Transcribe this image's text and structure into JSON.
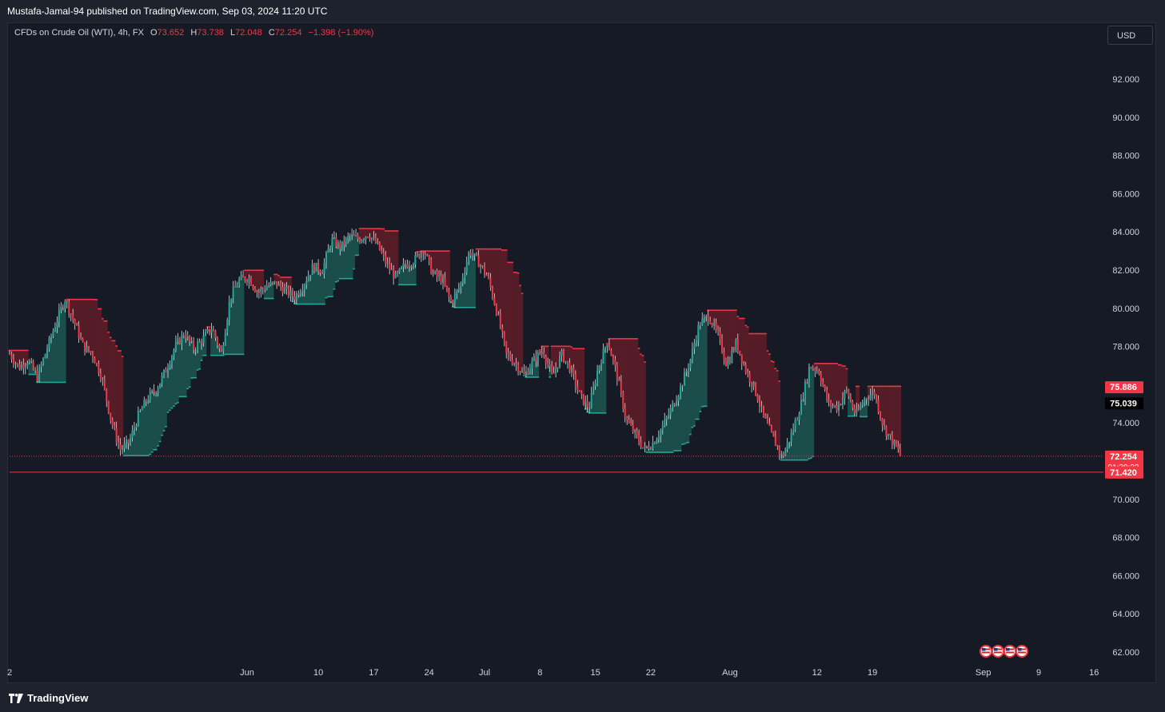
{
  "header": {
    "publisher_line": "Mustafa-Jamal-94 published on TradingView.com, Sep 03, 2024 11:20 UTC"
  },
  "legend": {
    "symbol": "CFDs on Crude Oil (WTI), 4h, FX",
    "open_label": "O",
    "open": "73.652",
    "high_label": "H",
    "high": "73.738",
    "low_label": "L",
    "low": "72.048",
    "close_label": "C",
    "close": "72.254",
    "change": "−1.398 (−1.90%)"
  },
  "toolbar": {
    "currency": "USD"
  },
  "footer": {
    "brand": "TradingView"
  },
  "colors": {
    "up": "#26a69a",
    "down": "#f23645",
    "background": "#161a25",
    "grid_text": "#d1d4dc"
  },
  "chart_data": {
    "type": "candlestick",
    "symbol": "CFDs on Crude Oil (WTI)",
    "interval": "4h",
    "ylim": [
      61.5,
      94.2
    ],
    "y_ticks": [
      "92.000",
      "90.000",
      "88.000",
      "86.000",
      "84.000",
      "82.000",
      "80.000",
      "78.000",
      "76.000",
      "74.000",
      "72.000",
      "70.000",
      "68.000",
      "66.000",
      "64.000",
      "62.000"
    ],
    "x_ticks": [
      {
        "label": "2",
        "day": 0
      },
      {
        "label": "Jun",
        "day": 30
      },
      {
        "label": "10",
        "day": 39
      },
      {
        "label": "17",
        "day": 46
      },
      {
        "label": "24",
        "day": 53
      },
      {
        "label": "Jul",
        "day": 60
      },
      {
        "label": "8",
        "day": 67
      },
      {
        "label": "15",
        "day": 74
      },
      {
        "label": "22",
        "day": 81
      },
      {
        "label": "Aug",
        "day": 91
      },
      {
        "label": "12",
        "day": 102
      },
      {
        "label": "19",
        "day": 109
      },
      {
        "label": "Sep",
        "day": 123
      },
      {
        "label": "9",
        "day": 130
      },
      {
        "label": "16",
        "day": 137
      }
    ],
    "price_path": [
      [
        0,
        77.6
      ],
      [
        1,
        76.9
      ],
      [
        2,
        77.3
      ],
      [
        3,
        76.4
      ],
      [
        4,
        77.8
      ],
      [
        5,
        79.2
      ],
      [
        6,
        80.5
      ],
      [
        7,
        79.3
      ],
      [
        8,
        78.0
      ],
      [
        9,
        77.6
      ],
      [
        10,
        76.4
      ],
      [
        11,
        74.2
      ],
      [
        12,
        72.6
      ],
      [
        13,
        73.0
      ],
      [
        14,
        74.4
      ],
      [
        15,
        75.3
      ],
      [
        16,
        75.8
      ],
      [
        17,
        76.8
      ],
      [
        18,
        78.0
      ],
      [
        19,
        78.7
      ],
      [
        20,
        77.9
      ],
      [
        21,
        78.4
      ],
      [
        22,
        79.0
      ],
      [
        23,
        77.6
      ],
      [
        24,
        80.6
      ],
      [
        25,
        81.5
      ],
      [
        26,
        81.6
      ],
      [
        27,
        80.8
      ],
      [
        28,
        81.2
      ],
      [
        29,
        81.3
      ],
      [
        30,
        80.9
      ],
      [
        31,
        80.6
      ],
      [
        32,
        81.3
      ],
      [
        33,
        82.2
      ],
      [
        34,
        82.0
      ],
      [
        35,
        83.6
      ],
      [
        36,
        83.2
      ],
      [
        37,
        83.8
      ],
      [
        38,
        83.6
      ],
      [
        39,
        83.9
      ],
      [
        40,
        83.3
      ],
      [
        41,
        82.3
      ],
      [
        42,
        81.6
      ],
      [
        43,
        82.3
      ],
      [
        44,
        82.5
      ],
      [
        45,
        83.1
      ],
      [
        46,
        81.8
      ],
      [
        47,
        81.5
      ],
      [
        48,
        80.3
      ],
      [
        49,
        81.2
      ],
      [
        50,
        83.0
      ],
      [
        51,
        82.4
      ],
      [
        52,
        81.6
      ],
      [
        53,
        79.8
      ],
      [
        54,
        77.6
      ],
      [
        55,
        77.1
      ],
      [
        56,
        76.5
      ],
      [
        57,
        77.3
      ],
      [
        58,
        77.8
      ],
      [
        59,
        76.4
      ],
      [
        60,
        77.6
      ],
      [
        61,
        76.8
      ],
      [
        62,
        75.4
      ],
      [
        63,
        74.8
      ],
      [
        64,
        76.9
      ],
      [
        65,
        78.3
      ],
      [
        66,
        76.6
      ],
      [
        67,
        74.2
      ],
      [
        68,
        73.4
      ],
      [
        69,
        72.6
      ],
      [
        70,
        73.0
      ],
      [
        71,
        73.8
      ],
      [
        72,
        74.8
      ],
      [
        73,
        75.9
      ],
      [
        74,
        77.3
      ],
      [
        75,
        79.2
      ],
      [
        76,
        79.6
      ],
      [
        77,
        78.6
      ],
      [
        78,
        77.0
      ],
      [
        79,
        78.2
      ],
      [
        80,
        76.8
      ],
      [
        81,
        75.8
      ],
      [
        82,
        74.3
      ],
      [
        83,
        73.2
      ],
      [
        84,
        72.2
      ],
      [
        85,
        73.4
      ],
      [
        86,
        74.9
      ],
      [
        87,
        77.0
      ],
      [
        88,
        76.7
      ],
      [
        89,
        75.0
      ],
      [
        90,
        74.8
      ],
      [
        91,
        75.7
      ],
      [
        92,
        74.4
      ],
      [
        93,
        75.3
      ],
      [
        94,
        75.6
      ],
      [
        95,
        73.8
      ],
      [
        96,
        73.0
      ],
      [
        97,
        72.254
      ]
    ],
    "last_day": 112.7,
    "levels": [
      {
        "name": "resistance-top",
        "value": 75.886,
        "label": "75.886",
        "color": "#f23645"
      },
      {
        "name": "mid-level",
        "value": 75.039,
        "label": "75.039",
        "color": "#000000"
      },
      {
        "name": "last-price",
        "value": 72.254,
        "label": "72.254",
        "sublabel": "01:39:22",
        "color": "#f23645"
      },
      {
        "name": "support-line",
        "value": 71.42,
        "label": "71.420",
        "color": "#f23645"
      }
    ],
    "events_icons": [
      "us-flag-icon",
      "us-flag-icon",
      "us-flag-icon",
      "us-flag-icon"
    ]
  }
}
